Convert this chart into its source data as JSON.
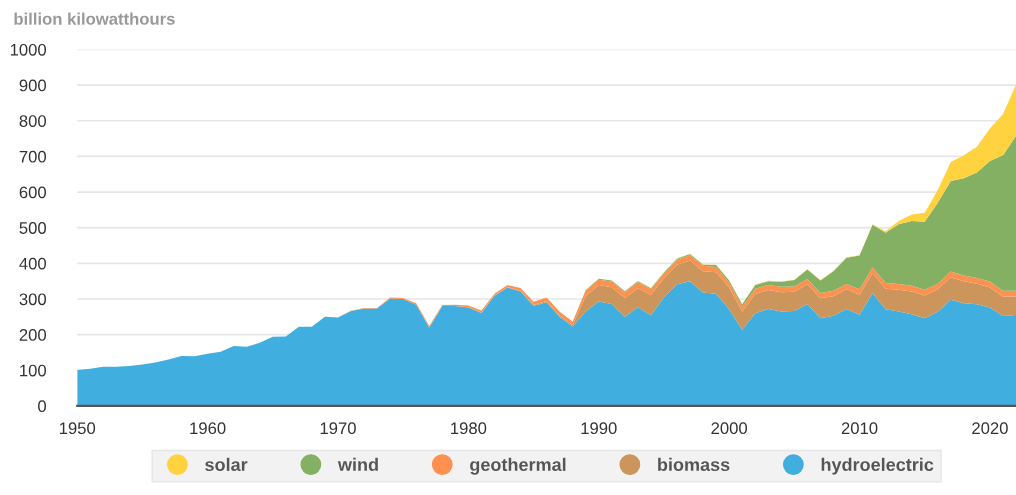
{
  "chart_data": {
    "type": "area",
    "stacked": true,
    "ylabel": "billion kilowatthours",
    "x": [
      1950,
      1951,
      1952,
      1953,
      1954,
      1955,
      1956,
      1957,
      1958,
      1959,
      1960,
      1961,
      1962,
      1963,
      1964,
      1965,
      1966,
      1967,
      1968,
      1969,
      1970,
      1971,
      1972,
      1973,
      1974,
      1975,
      1976,
      1977,
      1978,
      1979,
      1980,
      1981,
      1982,
      1983,
      1984,
      1985,
      1986,
      1987,
      1988,
      1989,
      1990,
      1991,
      1992,
      1993,
      1994,
      1995,
      1996,
      1997,
      1998,
      1999,
      2000,
      2001,
      2002,
      2003,
      2004,
      2005,
      2006,
      2007,
      2008,
      2009,
      2010,
      2011,
      2012,
      2013,
      2014,
      2015,
      2016,
      2017,
      2018,
      2019,
      2020,
      2021,
      2022
    ],
    "series": [
      {
        "name": "hydroelectric",
        "color": "#40aede",
        "values": [
          101,
          104,
          110,
          110,
          112,
          116,
          122,
          130,
          140,
          139,
          146,
          152,
          168,
          166,
          177,
          194,
          195,
          222,
          222,
          250,
          248,
          266,
          273,
          273,
          301,
          300,
          284,
          220,
          280,
          280,
          276,
          261,
          309,
          332,
          321,
          281,
          291,
          250,
          223,
          265,
          293,
          286,
          250,
          277,
          254,
          305,
          341,
          350,
          318,
          315,
          271,
          214,
          260,
          272,
          265,
          266,
          286,
          246,
          253,
          272,
          256,
          316,
          271,
          265,
          257,
          246,
          264,
          298,
          288,
          285,
          276,
          252,
          255
        ]
      },
      {
        "name": "biomass",
        "color": "#cc955b",
        "values": [
          0,
          0,
          0,
          0,
          0,
          0,
          0,
          0,
          0,
          0,
          0,
          0,
          0,
          0,
          0,
          0,
          0,
          0,
          0,
          0,
          0,
          0,
          0,
          0,
          0,
          0,
          0,
          0,
          0,
          0,
          1,
          1,
          1,
          1,
          2,
          2,
          3,
          3,
          4,
          43,
          46,
          47,
          53,
          53,
          57,
          53,
          55,
          58,
          60,
          60,
          61,
          50,
          54,
          53,
          54,
          54,
          55,
          56,
          55,
          55,
          56,
          57,
          58,
          61,
          64,
          64,
          63,
          63,
          62,
          58,
          56,
          55,
          52
        ]
      },
      {
        "name": "geothermal",
        "color": "#ff9150",
        "values": [
          0,
          0,
          0,
          0,
          0,
          0,
          0,
          0,
          0,
          0,
          0,
          0,
          0,
          0,
          0,
          0,
          0,
          0,
          0,
          0,
          1,
          1,
          2,
          2,
          3,
          3,
          4,
          4,
          3,
          4,
          5,
          6,
          5,
          6,
          8,
          9,
          10,
          11,
          10,
          15,
          15,
          16,
          16,
          17,
          16,
          13,
          14,
          15,
          15,
          15,
          14,
          14,
          15,
          14,
          15,
          15,
          15,
          15,
          15,
          15,
          15,
          15,
          16,
          16,
          16,
          16,
          16,
          16,
          16,
          16,
          17,
          16,
          16
        ]
      },
      {
        "name": "wind",
        "color": "#84b063",
        "values": [
          0,
          0,
          0,
          0,
          0,
          0,
          0,
          0,
          0,
          0,
          0,
          0,
          0,
          0,
          0,
          0,
          0,
          0,
          0,
          0,
          0,
          0,
          0,
          0,
          0,
          0,
          0,
          0,
          0,
          0,
          0,
          0,
          0,
          0,
          0,
          0,
          0,
          0,
          0,
          2,
          3,
          3,
          3,
          3,
          3,
          3,
          3,
          3,
          3,
          5,
          6,
          7,
          10,
          11,
          14,
          18,
          27,
          35,
          55,
          74,
          95,
          120,
          141,
          168,
          182,
          191,
          227,
          254,
          273,
          296,
          338,
          380,
          434
        ]
      },
      {
        "name": "solar",
        "color": "#ffd23f",
        "values": [
          0,
          0,
          0,
          0,
          0,
          0,
          0,
          0,
          0,
          0,
          0,
          0,
          0,
          0,
          0,
          0,
          0,
          0,
          0,
          0,
          0,
          0,
          0,
          0,
          0,
          0,
          0,
          0,
          0,
          0,
          0,
          0,
          0,
          0,
          0,
          0,
          0,
          0,
          0,
          0,
          0,
          0,
          0,
          1,
          1,
          1,
          1,
          1,
          1,
          1,
          1,
          1,
          1,
          1,
          1,
          1,
          1,
          1,
          1,
          1,
          1,
          2,
          4,
          9,
          18,
          25,
          36,
          53,
          64,
          72,
          91,
          115,
          144
        ]
      }
    ],
    "xlim": [
      1950,
      2022
    ],
    "xticks": [
      1950,
      1960,
      1970,
      1980,
      1990,
      2000,
      2010,
      2020
    ],
    "ylim": [
      0,
      1000
    ],
    "yticks": [
      0,
      100,
      200,
      300,
      400,
      500,
      600,
      700,
      800,
      900,
      1000
    ],
    "grid": "y",
    "legend": "bottom"
  }
}
